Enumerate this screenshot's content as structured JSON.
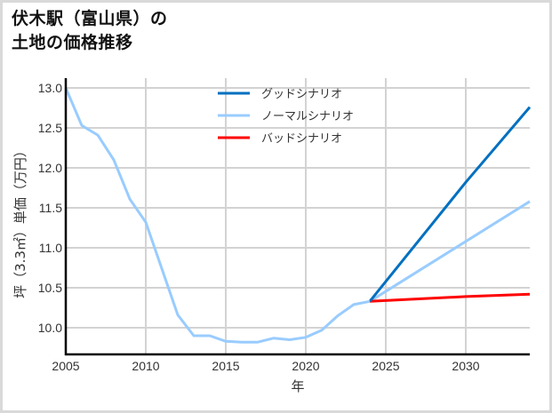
{
  "title": {
    "line1": "伏木駅（富山県）の",
    "line2": "土地の価格推移"
  },
  "colors": {
    "good": "#0070C0",
    "normal": "#99CCFF",
    "bad": "#FF0000",
    "grid": "#d3d3d3",
    "axis": "#000000"
  },
  "chart_data": {
    "type": "line",
    "title": "伏木駅（富山県）の土地の価格推移",
    "xlabel": "年",
    "ylabel": "坪（3.3㎡）単価（万円）",
    "xlim": [
      2005,
      2034
    ],
    "ylim": [
      9.68,
      13.0
    ],
    "x_ticks": [
      2005,
      2010,
      2015,
      2020,
      2025,
      2030
    ],
    "y_ticks": [
      10.0,
      10.5,
      11.0,
      11.5,
      12.0,
      12.5,
      13.0
    ],
    "x_tick_labels": [
      "2005",
      "2010",
      "2015",
      "2020",
      "2025",
      "2030"
    ],
    "y_tick_labels": [
      "10.0",
      "10.5",
      "11.0",
      "11.5",
      "12.0",
      "12.5",
      "13.0"
    ],
    "grid": true,
    "legend_position": "upper center",
    "historical": {
      "x": [
        2005,
        2006,
        2007,
        2008,
        2009,
        2010,
        2011,
        2012,
        2013,
        2014,
        2015,
        2016,
        2017,
        2018,
        2019,
        2020,
        2021,
        2022,
        2023,
        2024
      ],
      "values": [
        13.0,
        12.53,
        12.41,
        12.1,
        11.61,
        11.32,
        10.74,
        10.16,
        9.9,
        9.9,
        9.83,
        9.82,
        9.82,
        9.87,
        9.85,
        9.88,
        9.97,
        10.15,
        10.29,
        10.33
      ]
    },
    "series": [
      {
        "name": "グッドシナリオ",
        "color": "#0070C0",
        "x": [
          2024,
          2030,
          2034
        ],
        "values": [
          10.33,
          11.82,
          12.76
        ]
      },
      {
        "name": "ノーマルシナリオ",
        "color": "#99CCFF",
        "x": [
          2024,
          2030,
          2034
        ],
        "values": [
          10.33,
          11.08,
          11.58
        ]
      },
      {
        "name": "バッドシナリオ",
        "color": "#FF0000",
        "x": [
          2024,
          2030,
          2034
        ],
        "values": [
          10.33,
          10.39,
          10.42
        ]
      }
    ]
  },
  "legend": [
    {
      "label": "グッドシナリオ",
      "color": "#0070C0"
    },
    {
      "label": "ノーマルシナリオ",
      "color": "#99CCFF"
    },
    {
      "label": "バッドシナリオ",
      "color": "#FF0000"
    }
  ]
}
